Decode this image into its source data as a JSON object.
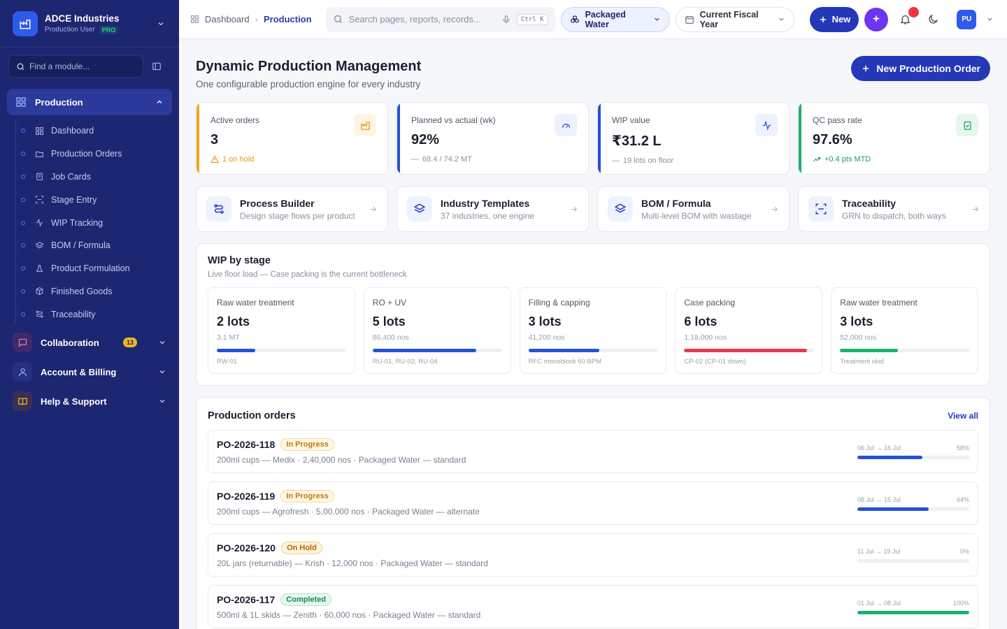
{
  "brand": {
    "name": "ADCE Industries",
    "role": "Production User",
    "plan": "PRO"
  },
  "sidebar": {
    "find_placeholder": "Find a module...",
    "production": {
      "label": "Production",
      "items": [
        "Dashboard",
        "Production Orders",
        "Job Cards",
        "Stage Entry",
        "WIP Tracking",
        "BOM / Formula",
        "Product Formulation",
        "Finished Goods",
        "Traceability"
      ]
    },
    "sections": [
      {
        "label": "Collaboration",
        "badge": "13"
      },
      {
        "label": "Account & Billing"
      },
      {
        "label": "Help & Support"
      }
    ]
  },
  "topbar": {
    "breadcrumb": [
      "Dashboard",
      "Production"
    ],
    "search_placeholder": "Search pages, reports, records...",
    "shortcut": "Ctrl K",
    "industry": "Packaged Water",
    "period": "Current Fiscal Year",
    "new_label": "New",
    "avatar": "PU"
  },
  "page": {
    "title": "Dynamic Production Management",
    "subtitle": "One configurable production engine for every industry",
    "new_order": "New Production Order"
  },
  "kpis": [
    {
      "label": "Active orders",
      "value": "3",
      "note": "1 on hold",
      "accent": "#f2a91f"
    },
    {
      "label": "Planned vs actual (wk)",
      "value": "92%",
      "note": "68.4 / 74.2 MT",
      "accent": "#2451d6"
    },
    {
      "label": "WIP value",
      "value": "₹31.2 L",
      "note": "19 lots on floor",
      "accent": "#2451d6"
    },
    {
      "label": "QC pass rate",
      "value": "97.6%",
      "note": "+0.4 pts MTD",
      "accent": "#18b26b"
    }
  ],
  "tools": [
    {
      "title": "Process Builder",
      "desc": "Design stage flows per product"
    },
    {
      "title": "Industry Templates",
      "desc": "37 industries, one engine"
    },
    {
      "title": "BOM / Formula",
      "desc": "Multi-level BOM with wastage"
    },
    {
      "title": "Traceability",
      "desc": "GRN to dispatch, both ways"
    }
  ],
  "wip": {
    "title": "WIP by stage",
    "subtitle": "Live floor load — Case packing is the current bottleneck",
    "stages": [
      {
        "name": "Raw water treatment",
        "lots": "2 lots",
        "qty": "3.1 MT",
        "foot": "RW-01",
        "level": 0.3,
        "color": "#2451d6"
      },
      {
        "name": "RO + UV",
        "lots": "5 lots",
        "qty": "86,400 nos",
        "foot": "RU-01, RU-02, RU-04",
        "level": 0.8,
        "color": "#2451d6"
      },
      {
        "name": "Filling & capping",
        "lots": "3 lots",
        "qty": "41,200 nos",
        "foot": "RFC monoblock 60 BPM",
        "level": 0.55,
        "color": "#2451d6"
      },
      {
        "name": "Case packing",
        "lots": "6 lots",
        "qty": "1,18,000 nos",
        "foot": "CP-02 (CP-01 down)",
        "level": 0.95,
        "color": "#e8394f"
      },
      {
        "name": "Raw water treatment",
        "lots": "3 lots",
        "qty": "52,000 nos",
        "foot": "Treatment skid",
        "level": 0.45,
        "color": "#18b26b"
      }
    ]
  },
  "orders": {
    "title": "Production orders",
    "view_all": "View all",
    "rows": [
      {
        "id": "PO-2026-118",
        "status": "In Progress",
        "desc": "200ml cups — Medix · 2,40,000 nos · Packaged Water — standard",
        "dates": "06 Jul → 16 Jul",
        "pct": "58%",
        "progress": 0.58,
        "color": "#2451d6"
      },
      {
        "id": "PO-2026-119",
        "status": "In Progress",
        "desc": "200ml cups — Agrofresh · 5,00,000 nos · Packaged Water — alternate",
        "dates": "08 Jul → 15 Jul",
        "pct": "64%",
        "progress": 0.64,
        "color": "#2451d6"
      },
      {
        "id": "PO-2026-120",
        "status": "On Hold",
        "desc": "20L jars (returnable) — Krish · 12,000 nos · Packaged Water — standard",
        "dates": "11 Jul → 19 Jul",
        "pct": "0%",
        "progress": 0,
        "color": "#2451d6"
      },
      {
        "id": "PO-2026-117",
        "status": "Completed",
        "desc": "500ml & 1L skids — Zenith · 60,000 nos · Packaged Water — standard",
        "dates": "01 Jul → 08 Jul",
        "pct": "100%",
        "progress": 1,
        "color": "#18b26b"
      }
    ]
  }
}
